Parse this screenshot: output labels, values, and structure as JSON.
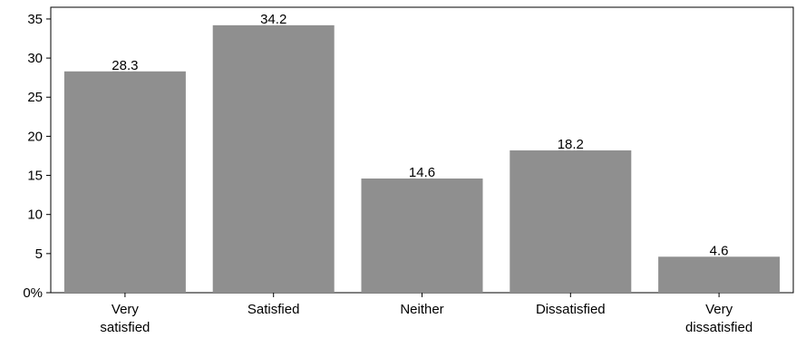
{
  "chart_data": {
    "type": "bar",
    "categories": [
      [
        "Very",
        "satisfied"
      ],
      [
        "Satisfied"
      ],
      [
        "Neither"
      ],
      [
        "Dissatisfied"
      ],
      [
        "Very",
        "dissatisfied"
      ]
    ],
    "values": [
      28.3,
      34.2,
      14.6,
      18.2,
      4.6
    ],
    "value_labels": [
      "28.3",
      "34.2",
      "14.6",
      "18.2",
      "4.6"
    ],
    "title": "",
    "xlabel": "",
    "ylabel": "",
    "ylim": [
      0,
      36.5
    ],
    "yticks": [
      0,
      5,
      10,
      15,
      20,
      25,
      30,
      35
    ],
    "ytick_labels": [
      "0%",
      "5",
      "10",
      "15",
      "20",
      "25",
      "30",
      "35"
    ],
    "grid": false,
    "bar_color": "#8f8f8f",
    "axis_color": "#000000"
  }
}
